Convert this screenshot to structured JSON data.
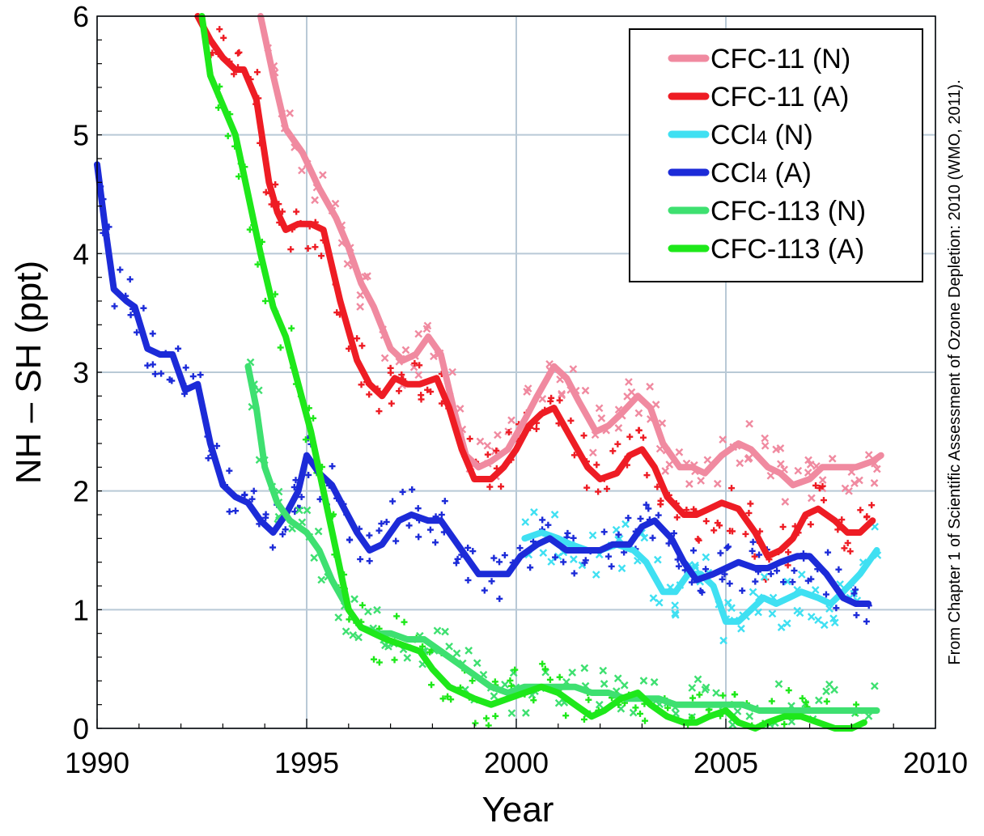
{
  "chart_data": {
    "type": "line",
    "xlabel": "Year",
    "ylabel": "NH – SH  (ppt)",
    "xlim": [
      1990,
      2010
    ],
    "ylim": [
      0,
      6
    ],
    "x_ticks": [
      "1990",
      "1995",
      "2000",
      "2005",
      "2010"
    ],
    "y_ticks": [
      "0",
      "1",
      "2",
      "3",
      "4",
      "5",
      "6"
    ],
    "grid": true,
    "legend_position": "top-right",
    "credit": "From Chapter 1 of Scientific Assessment of Ozone Depletion: 2010 (WMO, 2011).",
    "series": [
      {
        "name": "CFC-11 (N)",
        "legend_main": "CFC-11 (N)",
        "legend_sub": "",
        "legend_tail": "",
        "color": "#f08aa0",
        "marker": "x",
        "points": [
          [
            1993.9,
            6.0
          ],
          [
            1994.2,
            5.5
          ],
          [
            1994.5,
            5.05
          ],
          [
            1994.9,
            4.85
          ],
          [
            1995.3,
            4.55
          ],
          [
            1995.7,
            4.3
          ],
          [
            1996.0,
            4.05
          ],
          [
            1996.3,
            3.75
          ],
          [
            1996.6,
            3.55
          ],
          [
            1997.0,
            3.2
          ],
          [
            1997.3,
            3.1
          ],
          [
            1997.6,
            3.15
          ],
          [
            1997.9,
            3.3
          ],
          [
            1998.2,
            3.15
          ],
          [
            1998.5,
            2.7
          ],
          [
            1998.8,
            2.3
          ],
          [
            1999.1,
            2.2
          ],
          [
            1999.4,
            2.25
          ],
          [
            1999.8,
            2.35
          ],
          [
            2000.2,
            2.6
          ],
          [
            2000.5,
            2.8
          ],
          [
            2000.9,
            3.05
          ],
          [
            2001.2,
            2.95
          ],
          [
            2001.5,
            2.75
          ],
          [
            2001.9,
            2.5
          ],
          [
            2002.2,
            2.55
          ],
          [
            2002.5,
            2.65
          ],
          [
            2002.9,
            2.8
          ],
          [
            2003.2,
            2.7
          ],
          [
            2003.5,
            2.4
          ],
          [
            2003.9,
            2.2
          ],
          [
            2004.2,
            2.2
          ],
          [
            2004.5,
            2.15
          ],
          [
            2004.9,
            2.3
          ],
          [
            2005.3,
            2.4
          ],
          [
            2005.6,
            2.35
          ],
          [
            2006.0,
            2.2
          ],
          [
            2006.3,
            2.15
          ],
          [
            2006.6,
            2.05
          ],
          [
            2007.0,
            2.1
          ],
          [
            2007.3,
            2.2
          ],
          [
            2007.7,
            2.2
          ],
          [
            2008.1,
            2.2
          ],
          [
            2008.5,
            2.25
          ],
          [
            2008.7,
            2.3
          ]
        ]
      },
      {
        "name": "CFC-11 (A)",
        "legend_main": "CFC-11 (A)",
        "legend_sub": "",
        "legend_tail": "",
        "color": "#ee1c24",
        "marker": "+",
        "points": [
          [
            1992.4,
            6.0
          ],
          [
            1992.7,
            5.8
          ],
          [
            1993.0,
            5.65
          ],
          [
            1993.3,
            5.55
          ],
          [
            1993.5,
            5.55
          ],
          [
            1993.8,
            5.3
          ],
          [
            1994.1,
            4.6
          ],
          [
            1994.3,
            4.35
          ],
          [
            1994.5,
            4.2
          ],
          [
            1994.8,
            4.25
          ],
          [
            1995.1,
            4.25
          ],
          [
            1995.4,
            4.2
          ],
          [
            1995.8,
            3.6
          ],
          [
            1996.2,
            3.1
          ],
          [
            1996.5,
            2.9
          ],
          [
            1996.8,
            2.8
          ],
          [
            1997.1,
            2.95
          ],
          [
            1997.4,
            2.9
          ],
          [
            1997.7,
            2.9
          ],
          [
            1998.1,
            2.95
          ],
          [
            1998.4,
            2.7
          ],
          [
            1998.7,
            2.35
          ],
          [
            1999.0,
            2.1
          ],
          [
            1999.4,
            2.1
          ],
          [
            1999.7,
            2.2
          ],
          [
            2000.0,
            2.35
          ],
          [
            2000.3,
            2.55
          ],
          [
            2000.6,
            2.65
          ],
          [
            2000.9,
            2.7
          ],
          [
            2001.3,
            2.45
          ],
          [
            2001.7,
            2.2
          ],
          [
            2002.0,
            2.1
          ],
          [
            2002.4,
            2.15
          ],
          [
            2002.7,
            2.3
          ],
          [
            2003.0,
            2.35
          ],
          [
            2003.3,
            2.2
          ],
          [
            2003.6,
            1.95
          ],
          [
            2004.0,
            1.8
          ],
          [
            2004.3,
            1.8
          ],
          [
            2004.6,
            1.85
          ],
          [
            2004.9,
            1.9
          ],
          [
            2005.3,
            1.85
          ],
          [
            2005.7,
            1.65
          ],
          [
            2006.0,
            1.45
          ],
          [
            2006.3,
            1.5
          ],
          [
            2006.6,
            1.6
          ],
          [
            2006.9,
            1.8
          ],
          [
            2007.2,
            1.85
          ],
          [
            2007.6,
            1.75
          ],
          [
            2007.9,
            1.65
          ],
          [
            2008.2,
            1.65
          ],
          [
            2008.5,
            1.75
          ]
        ]
      },
      {
        "name": "CCl4 (N)",
        "legend_main": "CCl",
        "legend_sub": "4",
        "legend_tail": " (N)",
        "color": "#3fe0f2",
        "marker": "x",
        "points": [
          [
            2000.2,
            1.6
          ],
          [
            2000.6,
            1.65
          ],
          [
            2001.0,
            1.6
          ],
          [
            2001.3,
            1.55
          ],
          [
            2001.7,
            1.5
          ],
          [
            2002.0,
            1.5
          ],
          [
            2002.4,
            1.55
          ],
          [
            2002.8,
            1.5
          ],
          [
            2003.1,
            1.4
          ],
          [
            2003.5,
            1.15
          ],
          [
            2003.8,
            1.15
          ],
          [
            2004.1,
            1.3
          ],
          [
            2004.4,
            1.3
          ],
          [
            2004.7,
            1.2
          ],
          [
            2005.0,
            0.9
          ],
          [
            2005.3,
            0.9
          ],
          [
            2005.6,
            1.0
          ],
          [
            2005.9,
            1.1
          ],
          [
            2006.2,
            1.05
          ],
          [
            2006.5,
            1.1
          ],
          [
            2006.8,
            1.15
          ],
          [
            2007.2,
            1.1
          ],
          [
            2007.5,
            1.05
          ],
          [
            2007.8,
            1.15
          ],
          [
            2008.2,
            1.3
          ],
          [
            2008.6,
            1.5
          ]
        ]
      },
      {
        "name": "CCl4 (A)",
        "legend_main": "CCl",
        "legend_sub": "4",
        "legend_tail": " (A)",
        "color": "#1c2bd8",
        "marker": "+",
        "points": [
          [
            1990.0,
            4.75
          ],
          [
            1990.2,
            4.2
          ],
          [
            1990.4,
            3.7
          ],
          [
            1990.7,
            3.6
          ],
          [
            1990.9,
            3.55
          ],
          [
            1991.2,
            3.2
          ],
          [
            1991.5,
            3.15
          ],
          [
            1991.8,
            3.15
          ],
          [
            1992.1,
            2.85
          ],
          [
            1992.4,
            2.9
          ],
          [
            1992.7,
            2.4
          ],
          [
            1993.0,
            2.05
          ],
          [
            1993.3,
            1.95
          ],
          [
            1993.6,
            1.9
          ],
          [
            1993.9,
            1.75
          ],
          [
            1994.2,
            1.65
          ],
          [
            1994.5,
            1.8
          ],
          [
            1994.8,
            2.0
          ],
          [
            1995.0,
            2.3
          ],
          [
            1995.3,
            2.15
          ],
          [
            1995.6,
            2.05
          ],
          [
            1995.9,
            1.85
          ],
          [
            1996.2,
            1.65
          ],
          [
            1996.5,
            1.5
          ],
          [
            1996.8,
            1.55
          ],
          [
            1997.2,
            1.75
          ],
          [
            1997.5,
            1.8
          ],
          [
            1997.9,
            1.75
          ],
          [
            1998.2,
            1.75
          ],
          [
            1998.5,
            1.6
          ],
          [
            1998.8,
            1.45
          ],
          [
            1999.1,
            1.3
          ],
          [
            1999.5,
            1.3
          ],
          [
            1999.8,
            1.3
          ],
          [
            2000.1,
            1.45
          ],
          [
            2000.5,
            1.55
          ],
          [
            2000.8,
            1.6
          ],
          [
            2001.2,
            1.5
          ],
          [
            2001.6,
            1.5
          ],
          [
            2002.0,
            1.5
          ],
          [
            2002.3,
            1.55
          ],
          [
            2002.7,
            1.55
          ],
          [
            2003.0,
            1.7
          ],
          [
            2003.3,
            1.75
          ],
          [
            2003.7,
            1.6
          ],
          [
            2004.0,
            1.4
          ],
          [
            2004.3,
            1.25
          ],
          [
            2004.7,
            1.3
          ],
          [
            2005.0,
            1.35
          ],
          [
            2005.3,
            1.4
          ],
          [
            2005.7,
            1.35
          ],
          [
            2006.0,
            1.35
          ],
          [
            2006.3,
            1.4
          ],
          [
            2006.7,
            1.45
          ],
          [
            2007.0,
            1.45
          ],
          [
            2007.4,
            1.3
          ],
          [
            2007.8,
            1.1
          ],
          [
            2008.1,
            1.05
          ],
          [
            2008.4,
            1.05
          ]
        ]
      },
      {
        "name": "CFC-113 (N)",
        "legend_main": "CFC-113 (N)",
        "legend_sub": "",
        "legend_tail": "",
        "color": "#3ee070",
        "marker": "x",
        "points": [
          [
            1993.6,
            3.05
          ],
          [
            1993.8,
            2.7
          ],
          [
            1994.0,
            2.2
          ],
          [
            1994.3,
            1.9
          ],
          [
            1994.6,
            1.75
          ],
          [
            1995.0,
            1.65
          ],
          [
            1995.3,
            1.5
          ],
          [
            1995.6,
            1.25
          ],
          [
            1996.0,
            1.0
          ],
          [
            1996.3,
            0.85
          ],
          [
            1996.7,
            0.8
          ],
          [
            1997.0,
            0.8
          ],
          [
            1997.4,
            0.75
          ],
          [
            1997.8,
            0.75
          ],
          [
            1998.2,
            0.65
          ],
          [
            1998.6,
            0.55
          ],
          [
            1999.0,
            0.45
          ],
          [
            1999.4,
            0.35
          ],
          [
            1999.8,
            0.3
          ],
          [
            2000.2,
            0.35
          ],
          [
            2000.6,
            0.35
          ],
          [
            2001.0,
            0.35
          ],
          [
            2001.4,
            0.35
          ],
          [
            2001.8,
            0.3
          ],
          [
            2002.2,
            0.3
          ],
          [
            2002.6,
            0.25
          ],
          [
            2003.0,
            0.25
          ],
          [
            2003.4,
            0.25
          ],
          [
            2003.8,
            0.2
          ],
          [
            2004.2,
            0.2
          ],
          [
            2004.6,
            0.2
          ],
          [
            2005.0,
            0.2
          ],
          [
            2005.4,
            0.2
          ],
          [
            2005.8,
            0.15
          ],
          [
            2006.2,
            0.15
          ],
          [
            2006.6,
            0.15
          ],
          [
            2007.0,
            0.15
          ],
          [
            2007.4,
            0.15
          ],
          [
            2007.8,
            0.15
          ],
          [
            2008.2,
            0.15
          ],
          [
            2008.6,
            0.15
          ]
        ]
      },
      {
        "name": "CFC-113 (A)",
        "legend_main": "CFC-113 (A)",
        "legend_sub": "",
        "legend_tail": "",
        "color": "#1ee81a",
        "marker": "+",
        "points": [
          [
            1992.5,
            6.0
          ],
          [
            1992.7,
            5.5
          ],
          [
            1993.0,
            5.25
          ],
          [
            1993.3,
            5.0
          ],
          [
            1993.6,
            4.5
          ],
          [
            1993.9,
            4.0
          ],
          [
            1994.2,
            3.55
          ],
          [
            1994.5,
            3.3
          ],
          [
            1994.8,
            2.9
          ],
          [
            1995.1,
            2.5
          ],
          [
            1995.4,
            2.0
          ],
          [
            1995.7,
            1.5
          ],
          [
            1996.0,
            1.0
          ],
          [
            1996.3,
            0.85
          ],
          [
            1996.6,
            0.8
          ],
          [
            1996.9,
            0.75
          ],
          [
            1997.3,
            0.7
          ],
          [
            1997.7,
            0.65
          ],
          [
            1998.0,
            0.5
          ],
          [
            1998.4,
            0.35
          ],
          [
            1998.7,
            0.3
          ],
          [
            1999.0,
            0.25
          ],
          [
            1999.4,
            0.2
          ],
          [
            1999.8,
            0.25
          ],
          [
            2000.2,
            0.3
          ],
          [
            2000.6,
            0.35
          ],
          [
            2001.0,
            0.3
          ],
          [
            2001.4,
            0.2
          ],
          [
            2001.8,
            0.1
          ],
          [
            2002.1,
            0.15
          ],
          [
            2002.5,
            0.25
          ],
          [
            2002.9,
            0.3
          ],
          [
            2003.2,
            0.2
          ],
          [
            2003.6,
            0.1
          ],
          [
            2004.0,
            0.05
          ],
          [
            2004.3,
            0.05
          ],
          [
            2004.6,
            0.1
          ],
          [
            2005.0,
            0.15
          ],
          [
            2005.3,
            0.05
          ],
          [
            2005.7,
            0.0
          ],
          [
            2006.0,
            0.05
          ],
          [
            2006.4,
            0.1
          ],
          [
            2006.8,
            0.1
          ],
          [
            2007.2,
            0.05
          ],
          [
            2007.6,
            0.0
          ],
          [
            2008.0,
            0.0
          ],
          [
            2008.3,
            0.05
          ]
        ]
      }
    ]
  }
}
